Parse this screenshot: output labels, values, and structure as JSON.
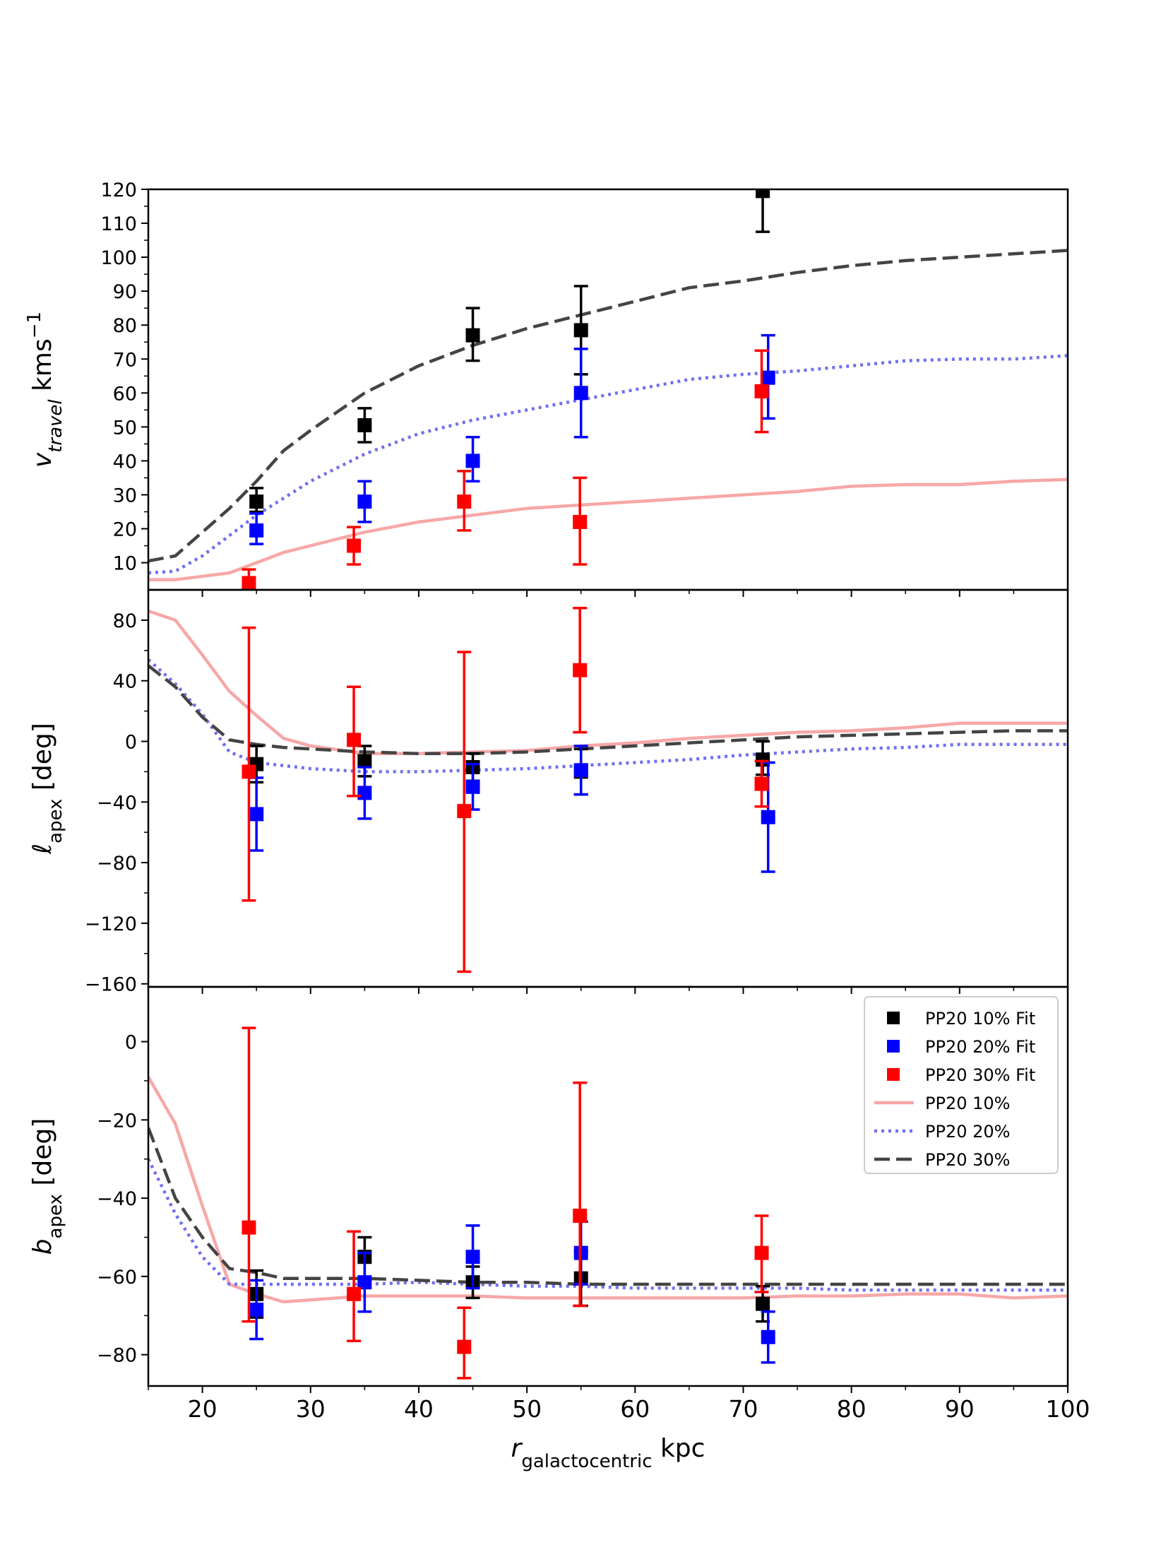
{
  "chart_data": [
    {
      "type": "line",
      "panel": "top",
      "ylabel": "v_travel kms^-1",
      "ylabel_parts": {
        "main": "v",
        "sub": "travel",
        "unit": "kms",
        "sup": "−1"
      },
      "ylim": [
        2,
        120
      ],
      "yticks": [
        10,
        20,
        30,
        40,
        50,
        60,
        70,
        80,
        90,
        100,
        110,
        120
      ],
      "ytick_labels": [
        "10",
        "20",
        "30",
        "40",
        "50",
        "60",
        "70",
        "80",
        "90",
        "100",
        "110",
        "120"
      ],
      "series": [
        {
          "name": "PP20 10%",
          "style": "solid",
          "color": "#f7a7a7",
          "x": [
            15,
            17.5,
            20,
            22.5,
            25,
            27.5,
            30,
            35,
            40,
            45,
            50,
            55,
            60,
            65,
            70,
            75,
            80,
            85,
            90,
            95,
            100
          ],
          "y": [
            5,
            5,
            6,
            7,
            10,
            13,
            15,
            19,
            22,
            24,
            26,
            27,
            28,
            29,
            30,
            31,
            32.5,
            33,
            33,
            34,
            34.5
          ]
        },
        {
          "name": "PP20 20%",
          "style": "dotted",
          "color": "#7070f0",
          "x": [
            15,
            17.5,
            20,
            22.5,
            25,
            27.5,
            30,
            35,
            40,
            45,
            50,
            55,
            60,
            65,
            70,
            75,
            80,
            85,
            90,
            95,
            100
          ],
          "y": [
            7,
            7.5,
            12,
            18,
            24,
            29,
            34,
            42,
            48,
            52,
            55,
            58,
            61,
            64,
            65.5,
            66.5,
            68,
            69.5,
            70,
            70,
            71
          ]
        },
        {
          "name": "PP20 30%",
          "style": "dashed",
          "color": "#444444",
          "x": [
            15,
            17.5,
            20,
            22.5,
            25,
            27.5,
            30,
            35,
            40,
            45,
            50,
            55,
            60,
            65,
            70,
            75,
            80,
            85,
            90,
            95,
            100
          ],
          "y": [
            10.5,
            12,
            19,
            26,
            34,
            43,
            49,
            60,
            68,
            74,
            79,
            83,
            87,
            91,
            93,
            95.5,
            97.5,
            99,
            100,
            101,
            102
          ]
        }
      ],
      "points": [
        {
          "name": "PP20 10% Fit",
          "color": "#000000",
          "x": [
            25,
            35,
            45,
            55,
            71.8
          ],
          "y": [
            28,
            50.5,
            77,
            78.5,
            119.5
          ],
          "err_low": [
            3,
            5,
            7.5,
            13,
            12
          ],
          "err_high": [
            4,
            5,
            8,
            13,
            6
          ]
        },
        {
          "name": "PP20 20% Fit",
          "color": "#0000ff",
          "x": [
            25,
            35,
            45,
            55,
            72.3
          ],
          "y": [
            19.5,
            28,
            40,
            60,
            64.5
          ],
          "err_low": [
            4,
            6,
            6,
            13,
            12
          ],
          "err_high": [
            5,
            6,
            7,
            13,
            12.5
          ]
        },
        {
          "name": "PP20 30% Fit",
          "color": "#ff0000",
          "x": [
            24.3,
            34,
            44.2,
            54.9,
            71.7
          ],
          "y": [
            4,
            15,
            28,
            22,
            60.5
          ],
          "err_low": [
            4,
            5.5,
            8.5,
            12.5,
            12
          ],
          "err_high": [
            4,
            5.5,
            9,
            13,
            12
          ]
        }
      ]
    },
    {
      "type": "line",
      "panel": "middle",
      "ylabel": "ℓ_apex [deg]",
      "ylabel_parts": {
        "main": "ℓ",
        "sub": "apex",
        "unit": "[deg]"
      },
      "ylim": [
        -162,
        100
      ],
      "yticks": [
        -160,
        -120,
        -80,
        -40,
        0,
        40,
        80
      ],
      "ytick_labels": [
        "−160",
        "−120",
        "−80",
        "−40",
        "0",
        "40",
        "80"
      ],
      "series": [
        {
          "name": "PP20 10%",
          "style": "solid",
          "color": "#f7a7a7",
          "x": [
            15,
            17.5,
            20,
            22.5,
            25,
            27.5,
            30,
            35,
            40,
            45,
            50,
            55,
            60,
            65,
            70,
            75,
            80,
            85,
            90,
            95,
            100
          ],
          "y": [
            86,
            80,
            57,
            33,
            17,
            2,
            -3,
            -8,
            -8,
            -7,
            -6,
            -3,
            -1,
            2,
            4,
            6,
            7,
            9,
            12,
            12,
            12
          ]
        },
        {
          "name": "PP20 20%",
          "style": "dotted",
          "color": "#7070f0",
          "x": [
            15,
            17.5,
            20,
            22.5,
            25,
            27.5,
            30,
            35,
            40,
            45,
            50,
            55,
            60,
            65,
            70,
            75,
            80,
            85,
            90,
            95,
            100
          ],
          "y": [
            54,
            38,
            18,
            -7,
            -14,
            -16,
            -18,
            -20,
            -20,
            -19,
            -18,
            -16,
            -14,
            -12,
            -9,
            -7,
            -5,
            -4,
            -2,
            -2,
            -2
          ]
        },
        {
          "name": "PP20 30%",
          "style": "dashed",
          "color": "#444444",
          "x": [
            15,
            17.5,
            20,
            22.5,
            25,
            27.5,
            30,
            35,
            40,
            45,
            50,
            55,
            60,
            65,
            70,
            75,
            80,
            85,
            90,
            95,
            100
          ],
          "y": [
            50,
            36,
            16,
            1,
            -2,
            -4,
            -5,
            -7,
            -8,
            -8,
            -7,
            -5,
            -3,
            -1,
            1,
            3,
            4,
            5,
            6,
            7,
            7
          ]
        }
      ],
      "points": [
        {
          "name": "PP20 10% Fit",
          "color": "#000000",
          "x": [
            25,
            35,
            45,
            55,
            71.8
          ],
          "y": [
            -15,
            -13,
            -17,
            -20,
            -12
          ],
          "err_low": [
            12,
            10,
            9,
            15,
            10
          ],
          "err_high": [
            12,
            10,
            9,
            15,
            12
          ]
        },
        {
          "name": "PP20 20% Fit",
          "color": "#0000ff",
          "x": [
            25,
            35,
            45,
            55,
            72.3
          ],
          "y": [
            -48,
            -34,
            -30,
            -19,
            -50
          ],
          "err_low": [
            24,
            17,
            15,
            16,
            36
          ],
          "err_high": [
            24,
            17,
            15,
            16,
            36
          ]
        },
        {
          "name": "PP20 30% Fit",
          "color": "#ff0000",
          "x": [
            24.3,
            34,
            44.2,
            54.9,
            71.7
          ],
          "y": [
            -20,
            1,
            -46,
            47,
            -28
          ],
          "err_low": [
            85,
            37,
            106,
            41,
            15
          ],
          "err_high": [
            95,
            35,
            105,
            41,
            15
          ]
        }
      ]
    },
    {
      "type": "line",
      "panel": "bottom",
      "ylabel": "b_apex [deg]",
      "ylabel_parts": {
        "main": "b",
        "sub": "apex",
        "unit": "[deg]"
      },
      "xlabel": "r_galactocentric kpc",
      "xlabel_parts": {
        "main": "r",
        "sub": "galactocentric",
        "unit": "kpc"
      },
      "xlim": [
        15,
        100
      ],
      "xticks": [
        20,
        30,
        40,
        50,
        60,
        70,
        80,
        90,
        100
      ],
      "xtick_labels": [
        "20",
        "30",
        "40",
        "50",
        "60",
        "70",
        "80",
        "90",
        "100"
      ],
      "ylim": [
        -88,
        14
      ],
      "yticks": [
        -80,
        -60,
        -40,
        -20,
        0
      ],
      "ytick_labels": [
        "−80",
        "−60",
        "−40",
        "−20",
        "0"
      ],
      "series": [
        {
          "name": "PP20 10%",
          "style": "solid",
          "color": "#f7a7a7",
          "x": [
            15,
            17.5,
            20,
            22.5,
            25,
            27.5,
            30,
            35,
            40,
            45,
            50,
            55,
            60,
            65,
            70,
            75,
            80,
            85,
            90,
            95,
            100
          ],
          "y": [
            -9,
            -21,
            -42,
            -62,
            -64.5,
            -66.5,
            -66,
            -65,
            -65,
            -65,
            -65.5,
            -65.5,
            -65.5,
            -65.5,
            -65.5,
            -65,
            -65,
            -64.5,
            -64.5,
            -65.5,
            -65
          ]
        },
        {
          "name": "PP20 20%",
          "style": "dotted",
          "color": "#7070f0",
          "x": [
            15,
            17.5,
            20,
            22.5,
            25,
            27.5,
            30,
            35,
            40,
            45,
            50,
            55,
            60,
            65,
            70,
            75,
            80,
            85,
            90,
            95,
            100
          ],
          "y": [
            -30,
            -44,
            -55,
            -62,
            -62,
            -62,
            -62,
            -62,
            -61.5,
            -62,
            -62.5,
            -62.5,
            -63,
            -63,
            -63,
            -63,
            -63.5,
            -63.5,
            -63.5,
            -63.5,
            -63.5
          ]
        },
        {
          "name": "PP20 30%",
          "style": "dashed",
          "color": "#444444",
          "x": [
            15,
            17.5,
            20,
            22.5,
            25,
            27.5,
            30,
            35,
            40,
            45,
            50,
            55,
            60,
            65,
            70,
            75,
            80,
            85,
            90,
            95,
            100
          ],
          "y": [
            -22,
            -40,
            -50,
            -58,
            -59,
            -60.5,
            -60.5,
            -60.5,
            -61,
            -61.5,
            -61.5,
            -62,
            -62,
            -62,
            -62,
            -62,
            -62,
            -62,
            -62,
            -62,
            -62
          ]
        }
      ],
      "points": [
        {
          "name": "PP20 10% Fit",
          "color": "#000000",
          "x": [
            25,
            35,
            45,
            55,
            71.8
          ],
          "y": [
            -64.5,
            -55,
            -61.5,
            -60.5,
            -67
          ],
          "err_low": [
            6,
            6,
            4,
            7,
            4.5
          ],
          "err_high": [
            6,
            5,
            4,
            7,
            4.5
          ]
        },
        {
          "name": "PP20 20% Fit",
          "color": "#0000ff",
          "x": [
            25,
            35,
            45,
            55,
            72.3
          ],
          "y": [
            -68.5,
            -61.5,
            -55,
            -54,
            -75.5
          ],
          "err_low": [
            7.5,
            7.5,
            8,
            8,
            6.5
          ],
          "err_high": [
            7.5,
            7.5,
            8,
            8,
            6.5
          ]
        },
        {
          "name": "PP20 30% Fit",
          "color": "#ff0000",
          "x": [
            24.3,
            34,
            44.2,
            54.9,
            71.7
          ],
          "y": [
            -47.5,
            -64.5,
            -78,
            -44.5,
            -54
          ],
          "err_low": [
            24,
            12,
            8,
            23,
            10
          ],
          "err_high": [
            51,
            16,
            10,
            34,
            9.5
          ]
        }
      ],
      "legend": {
        "placement": "top-right",
        "entries": [
          {
            "label": "PP20 10% Fit",
            "kind": "marker",
            "color": "#000000"
          },
          {
            "label": "PP20 20% Fit",
            "kind": "marker",
            "color": "#0000ff"
          },
          {
            "label": "PP20 30% Fit",
            "kind": "marker",
            "color": "#ff0000"
          },
          {
            "label": "PP20 10%",
            "kind": "solid",
            "color": "#f7a7a7"
          },
          {
            "label": "PP20 20%",
            "kind": "dotted",
            "color": "#7070f0"
          },
          {
            "label": "PP20 30%",
            "kind": "dashed",
            "color": "#444444"
          }
        ]
      }
    }
  ]
}
